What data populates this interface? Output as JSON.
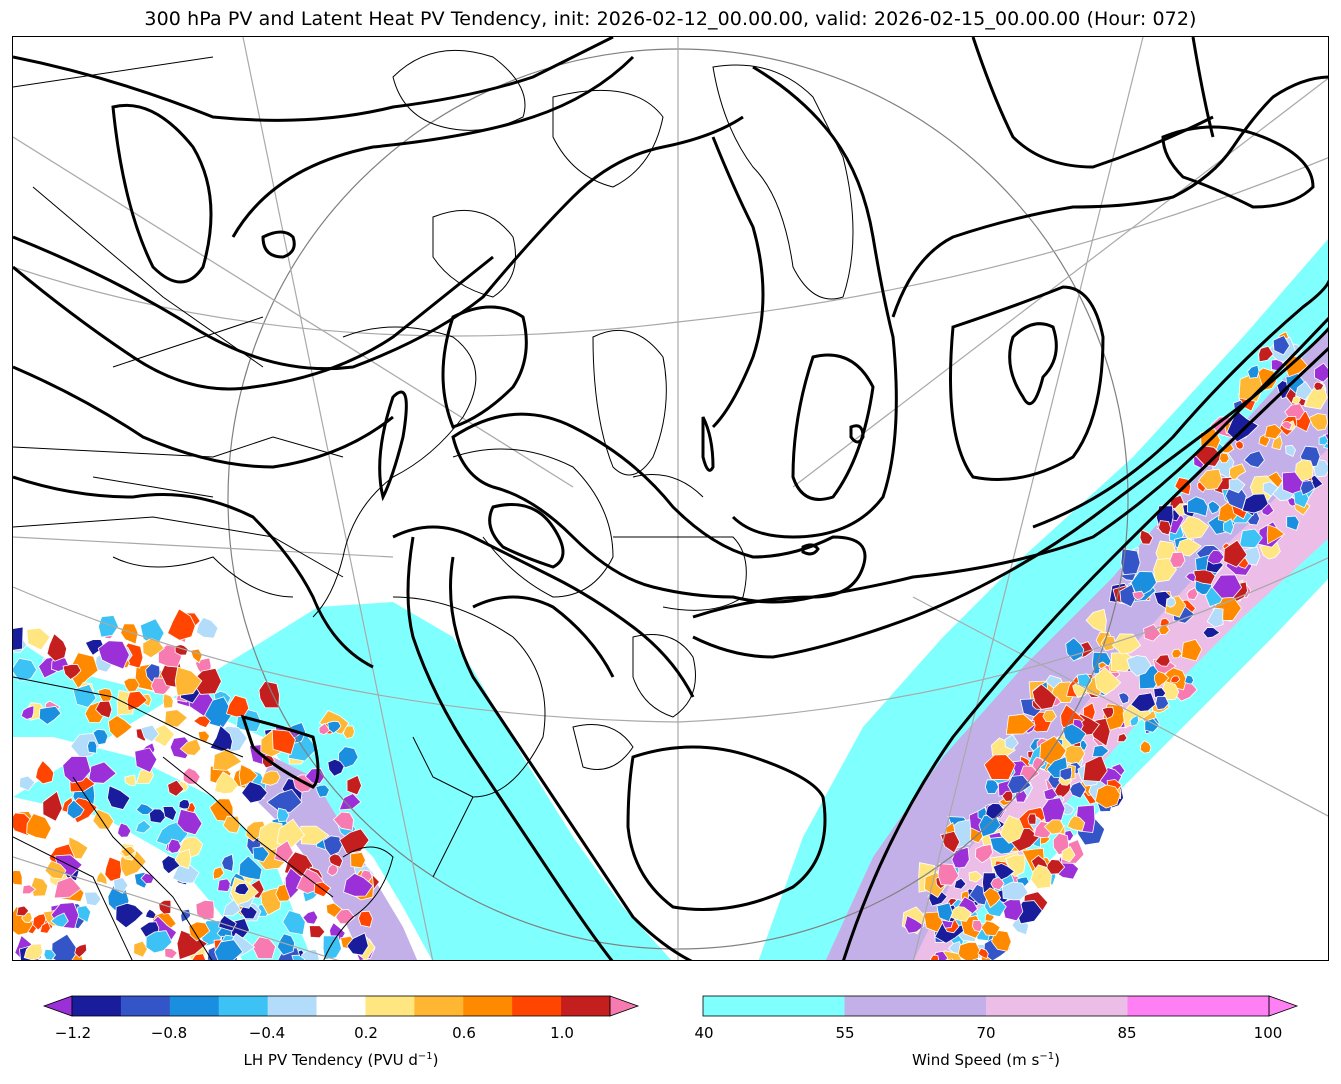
{
  "title": "300 hPa PV and Latent Heat PV Tendency, init: 2026-02-12_00.00.00, valid: 2026-02-15_00.00.00 (Hour: 072)",
  "colorbars": {
    "lh": {
      "label": "LH PV Tendency (PVU d",
      "label_sup": "−1",
      "label_close": ")",
      "ticks": [
        "−1.2",
        "−0.8",
        "−0.4",
        "0.2",
        "0.6",
        "1.0"
      ],
      "colors": [
        "#9b30d8",
        "#1a1d9b",
        "#3355c8",
        "#1a8fe0",
        "#3dc2f5",
        "#b3dcfa",
        "#ffffff",
        "#ffe680",
        "#ffb733",
        "#ff8a00",
        "#ff4500",
        "#c41e1e",
        "#f77bb0"
      ]
    },
    "wind": {
      "label": "Wind Speed (m s",
      "label_sup": "−1",
      "label_close": ")",
      "ticks": [
        "40",
        "55",
        "70",
        "85",
        "100"
      ],
      "colors": [
        "#80ffff",
        "#c4b0e8",
        "#ecbde6",
        "#ff7ff5"
      ]
    }
  },
  "map": {
    "colors": {
      "wind_40": "#80ffff",
      "wind_55": "#c4b0e8",
      "wind_70": "#ecbde6",
      "pv_contour": "#000000",
      "grid": "#a9a9a9"
    }
  }
}
